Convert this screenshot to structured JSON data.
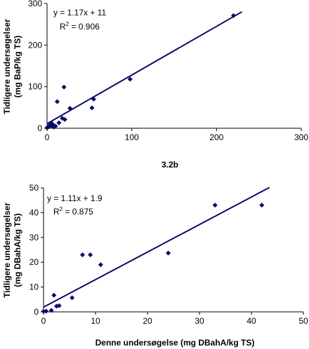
{
  "chart_data": [
    {
      "type": "scatter",
      "xlabel": "3.2b",
      "ylabel_line1": "Tidligere undersøgelser",
      "ylabel_line2": "(mg BaP/kg TS)",
      "xlim": [
        0,
        300
      ],
      "ylim": [
        0,
        300
      ],
      "x_ticks": [
        "0",
        "100",
        "200",
        "300"
      ],
      "y_ticks": [
        "0",
        "100",
        "200",
        "300"
      ],
      "grid": false,
      "legend": "none",
      "equation": "y = 1.17x + 11",
      "r2_label": "R",
      "r2_sup": "2",
      "r2_value": " = 0.906",
      "trendline": {
        "slope": 1.17,
        "intercept": 11,
        "x_range": [
          0,
          230
        ]
      },
      "points": [
        [
          0,
          1
        ],
        [
          1,
          3
        ],
        [
          2,
          4
        ],
        [
          3,
          7
        ],
        [
          4,
          9
        ],
        [
          5,
          6
        ],
        [
          6,
          11
        ],
        [
          7,
          8
        ],
        [
          8,
          3
        ],
        [
          10,
          5
        ],
        [
          12,
          64
        ],
        [
          14,
          13
        ],
        [
          18,
          24
        ],
        [
          20,
          99
        ],
        [
          21,
          21
        ],
        [
          27,
          48
        ],
        [
          53,
          49
        ],
        [
          55,
          70
        ],
        [
          98,
          118
        ],
        [
          220,
          271
        ]
      ],
      "marker_color": "#0a0a6b",
      "line_color": "#0a0a6b"
    },
    {
      "type": "scatter",
      "xlabel": "Denne undersøgelse (mg DBahA/kg TS)",
      "ylabel_line1": "Tidligere undersøgelser",
      "ylabel_line2": "(mg DBahA/kg TS)",
      "xlim": [
        0,
        50
      ],
      "ylim": [
        0,
        50
      ],
      "x_ticks": [
        "0",
        "10",
        "20",
        "30",
        "40",
        "50"
      ],
      "y_ticks": [
        "0",
        "10",
        "20",
        "30",
        "40",
        "50"
      ],
      "grid": false,
      "legend": "none",
      "equation": "y = 1.11x + 1.9",
      "r2_label": "R",
      "r2_sup": "2",
      "r2_value": " = 0.875",
      "trendline": {
        "slope": 1.11,
        "intercept": 1.9,
        "x_range": [
          0,
          43.5
        ]
      },
      "points": [
        [
          0,
          0.2
        ],
        [
          0.5,
          0.3
        ],
        [
          1.5,
          0.6
        ],
        [
          2,
          6.7
        ],
        [
          2.5,
          2.3
        ],
        [
          3,
          2.5
        ],
        [
          5.5,
          5.7
        ],
        [
          7.5,
          23
        ],
        [
          9,
          23
        ],
        [
          11,
          19
        ],
        [
          24,
          23.7
        ],
        [
          33,
          43
        ],
        [
          42,
          43
        ]
      ],
      "marker_color": "#0a0a6b",
      "line_color": "#0a0a6b"
    }
  ]
}
